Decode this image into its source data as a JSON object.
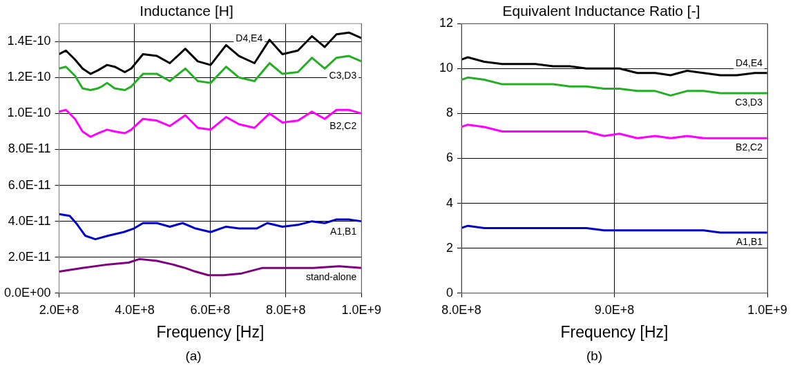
{
  "chart_data": [
    {
      "type": "line",
      "title": "Inductance [H]",
      "xlabel": "Frequency [Hz]",
      "marker": "none",
      "grid": true,
      "legend": false,
      "xlim": [
        200000000.0,
        1000000000.0
      ],
      "xticks": [
        {
          "value": 200000000.0,
          "label": "2.0E+8"
        },
        {
          "value": 400000000.0,
          "label": "4.0E+8"
        },
        {
          "value": 600000000.0,
          "label": "6.0E+8"
        },
        {
          "value": 800000000.0,
          "label": "8.0E+8"
        },
        {
          "value": 1000000000.0,
          "label": "1.0E+9"
        }
      ],
      "ylim": [
        0,
        1.5e-10
      ],
      "yticks": [
        {
          "value": 0,
          "label": "0.0E+00"
        },
        {
          "value": 2e-11,
          "label": "2.0E-11"
        },
        {
          "value": 4e-11,
          "label": "4.0E-11"
        },
        {
          "value": 6e-11,
          "label": "6.0E-11"
        },
        {
          "value": 8e-11,
          "label": "8.0E-11"
        },
        {
          "value": 1e-10,
          "label": "1.0E-10"
        },
        {
          "value": 1.2e-10,
          "label": "1.2E-10"
        },
        {
          "value": 1.4e-10,
          "label": "1.4E-10"
        }
      ],
      "series": [
        {
          "name": "D4,E4",
          "color": "#000000",
          "x": [
            200000000.0,
            218000000.0,
            242000000.0,
            262000000.0,
            283000000.0,
            303000000.0,
            327000000.0,
            347000000.0,
            374000000.0,
            391000000.0,
            422000000.0,
            459000000.0,
            493000000.0,
            534000000.0,
            567000000.0,
            601000000.0,
            642000000.0,
            676000000.0,
            717000000.0,
            757000000.0,
            791000000.0,
            832000000.0,
            869000000.0,
            903000000.0,
            934000000.0,
            967000000.0,
            1000000000.0
          ],
          "values": [
            1.33e-10,
            1.35e-10,
            1.3e-10,
            1.25e-10,
            1.22e-10,
            1.24e-10,
            1.27e-10,
            1.26e-10,
            1.23e-10,
            1.25e-10,
            1.33e-10,
            1.32e-10,
            1.28e-10,
            1.36e-10,
            1.29e-10,
            1.27e-10,
            1.38e-10,
            1.32e-10,
            1.28e-10,
            1.41e-10,
            1.33e-10,
            1.35e-10,
            1.43e-10,
            1.37e-10,
            1.44e-10,
            1.45e-10,
            1.42e-10
          ]
        },
        {
          "name": "C3,D3",
          "color": "#22b022",
          "x": [
            200000000.0,
            218000000.0,
            242000000.0,
            262000000.0,
            283000000.0,
            303000000.0,
            313000000.0,
            327000000.0,
            347000000.0,
            374000000.0,
            391000000.0,
            422000000.0,
            459000000.0,
            493000000.0,
            534000000.0,
            567000000.0,
            601000000.0,
            642000000.0,
            676000000.0,
            717000000.0,
            757000000.0,
            791000000.0,
            832000000.0,
            869000000.0,
            903000000.0,
            934000000.0,
            967000000.0,
            1000000000.0
          ],
          "values": [
            1.25e-10,
            1.26e-10,
            1.21e-10,
            1.14e-10,
            1.13e-10,
            1.14e-10,
            1.15e-10,
            1.17e-10,
            1.14e-10,
            1.13e-10,
            1.15e-10,
            1.22e-10,
            1.22e-10,
            1.18e-10,
            1.25e-10,
            1.18e-10,
            1.17e-10,
            1.26e-10,
            1.2e-10,
            1.18e-10,
            1.28e-10,
            1.22e-10,
            1.23e-10,
            1.31e-10,
            1.25e-10,
            1.31e-10,
            1.32e-10,
            1.29e-10
          ]
        },
        {
          "name": "B2,C2",
          "color": "#ff00ff",
          "x": [
            200000000.0,
            218000000.0,
            242000000.0,
            262000000.0,
            283000000.0,
            303000000.0,
            327000000.0,
            347000000.0,
            374000000.0,
            391000000.0,
            422000000.0,
            459000000.0,
            493000000.0,
            534000000.0,
            567000000.0,
            601000000.0,
            642000000.0,
            676000000.0,
            717000000.0,
            757000000.0,
            791000000.0,
            832000000.0,
            869000000.0,
            903000000.0,
            934000000.0,
            967000000.0,
            1000000000.0
          ],
          "values": [
            1.01e-10,
            1.02e-10,
            9.7e-11,
            9e-11,
            8.7e-11,
            8.9e-11,
            9.1e-11,
            9e-11,
            8.9e-11,
            9.1e-11,
            9.7e-11,
            9.6e-11,
            9.3e-11,
            9.9e-11,
            9.2e-11,
            9.1e-11,
            9.8e-11,
            9.4e-11,
            9.2e-11,
            1e-10,
            9.5e-11,
            9.6e-11,
            1.01e-10,
            9.7e-11,
            1.02e-10,
            1.02e-10,
            1e-10
          ]
        },
        {
          "name": "A1,B1",
          "color": "#0000cc",
          "x": [
            200000000.0,
            228000000.0,
            245000000.0,
            269000000.0,
            296000000.0,
            330000000.0,
            371000000.0,
            398000000.0,
            422000000.0,
            459000000.0,
            493000000.0,
            527000000.0,
            561000000.0,
            601000000.0,
            642000000.0,
            676000000.0,
            723000000.0,
            751000000.0,
            791000000.0,
            832000000.0,
            869000000.0,
            903000000.0,
            934000000.0,
            967000000.0,
            1000000000.0
          ],
          "values": [
            4.4e-11,
            4.3e-11,
            3.9e-11,
            3.2e-11,
            3e-11,
            3.2e-11,
            3.4e-11,
            3.6e-11,
            3.9e-11,
            3.9e-11,
            3.7e-11,
            3.9e-11,
            3.6e-11,
            3.4e-11,
            3.7e-11,
            3.6e-11,
            3.6e-11,
            3.9e-11,
            3.7e-11,
            3.8e-11,
            4e-11,
            3.9e-11,
            4.1e-11,
            4.1e-11,
            4e-11
          ]
        },
        {
          "name": "stand-alone",
          "color": "#800080",
          "x": [
            200000000.0,
            262000000.0,
            330000000.0,
            384000000.0,
            412000000.0,
            459000000.0,
            500000000.0,
            534000000.0,
            561000000.0,
            595000000.0,
            635000000.0,
            683000000.0,
            737000000.0,
            791000000.0,
            832000000.0,
            873000000.0,
            941000000.0,
            1000000000.0
          ],
          "values": [
            1.2e-11,
            1.4e-11,
            1.6e-11,
            1.7e-11,
            1.9e-11,
            1.8e-11,
            1.6e-11,
            1.4e-11,
            1.2e-11,
            1e-11,
            1e-11,
            1.1e-11,
            1.4e-11,
            1.4e-11,
            1.4e-11,
            1.4e-11,
            1.5e-11,
            1.4e-11
          ]
        }
      ],
      "annotations": [
        "(a)"
      ]
    },
    {
      "type": "line",
      "title": "Equivalent Inductance Ratio [-]",
      "xlabel": "Frequency [Hz]",
      "marker": "none",
      "grid": true,
      "legend": false,
      "xlim": [
        800000000.0,
        1000000000.0
      ],
      "xticks": [
        {
          "value": 800000000.0,
          "label": "8.0E+8"
        },
        {
          "value": 900000000.0,
          "label": "9.0E+8"
        },
        {
          "value": 1000000000.0,
          "label": "1.0E+9"
        }
      ],
      "ylim": [
        0,
        12
      ],
      "yticks": [
        0,
        2,
        4,
        6,
        8,
        10,
        12
      ],
      "series": [
        {
          "name": "D4,E4",
          "color": "#000000",
          "x": [
            800000000.0,
            804200000.0,
            815000000.0,
            826700000.0,
            837500000.0,
            848300000.0,
            860000000.0,
            870800000.0,
            881700000.0,
            893300000.0,
            903300000.0,
            915000000.0,
            926700000.0,
            936700000.0,
            947500000.0,
            958300000.0,
            969200000.0,
            980000000.0,
            991700000.0,
            1000000000.0
          ],
          "values": [
            10.4,
            10.5,
            10.3,
            10.2,
            10.2,
            10.2,
            10.1,
            10.1,
            10.0,
            10.0,
            10.0,
            9.8,
            9.8,
            9.7,
            9.9,
            9.8,
            9.7,
            9.7,
            9.8,
            9.8
          ]
        },
        {
          "name": "C3,D3",
          "color": "#22b022",
          "x": [
            800000000.0,
            804200000.0,
            815000000.0,
            826700000.0,
            837500000.0,
            848300000.0,
            860000000.0,
            870800000.0,
            881700000.0,
            893300000.0,
            903300000.0,
            915000000.0,
            926700000.0,
            936700000.0,
            947500000.0,
            958300000.0,
            969200000.0,
            980000000.0,
            991700000.0,
            1000000000.0
          ],
          "values": [
            9.5,
            9.6,
            9.5,
            9.3,
            9.3,
            9.3,
            9.3,
            9.2,
            9.2,
            9.1,
            9.1,
            9.0,
            9.0,
            8.8,
            9.0,
            9.0,
            8.9,
            8.9,
            8.9,
            8.9
          ]
        },
        {
          "name": "B2,C2",
          "color": "#ff00ff",
          "x": [
            800000000.0,
            804200000.0,
            815000000.0,
            826700000.0,
            837500000.0,
            848300000.0,
            860000000.0,
            870800000.0,
            881700000.0,
            893300000.0,
            903300000.0,
            915000000.0,
            926700000.0,
            936700000.0,
            947500000.0,
            958300000.0,
            969200000.0,
            980000000.0,
            991700000.0,
            1000000000.0
          ],
          "values": [
            7.4,
            7.5,
            7.4,
            7.2,
            7.2,
            7.2,
            7.2,
            7.2,
            7.2,
            7.0,
            7.1,
            6.9,
            7.0,
            6.9,
            7.0,
            6.9,
            6.9,
            6.9,
            6.9,
            6.9
          ]
        },
        {
          "name": "A1,B1",
          "color": "#0000cc",
          "x": [
            800000000.0,
            804200000.0,
            815000000.0,
            826700000.0,
            837500000.0,
            848300000.0,
            860000000.0,
            870800000.0,
            881700000.0,
            893300000.0,
            903300000.0,
            915000000.0,
            926700000.0,
            936700000.0,
            947500000.0,
            958300000.0,
            969200000.0,
            980000000.0,
            991700000.0,
            1000000000.0
          ],
          "values": [
            2.9,
            3.0,
            2.9,
            2.9,
            2.9,
            2.9,
            2.9,
            2.9,
            2.9,
            2.8,
            2.8,
            2.8,
            2.8,
            2.8,
            2.8,
            2.8,
            2.7,
            2.7,
            2.7,
            2.7
          ]
        }
      ],
      "annotations": [
        "(b)"
      ]
    }
  ]
}
